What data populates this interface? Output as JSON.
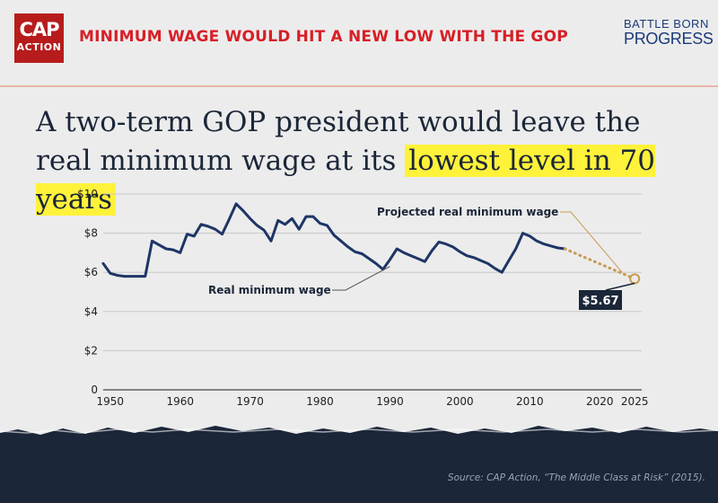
{
  "header": {
    "cap_logo_line1": "CAP",
    "cap_logo_line2": "ACTION",
    "banner": "MINIMUM WAGE WOULD HIT A NEW LOW WITH THE GOP",
    "bbp_line1": "BATTLE BORN",
    "bbp_line2": "PROGRESS",
    "brand_red": "#d71f26",
    "brand_blue": "#1a3a7a"
  },
  "headline": {
    "part1": "A two-term GOP president would leave the real minimum wage at its ",
    "highlight": "lowest level in 70 years",
    "highlight_color": "#fff23a"
  },
  "source": "Source: CAP Action, “The Middle Class at Risk” (2015).",
  "chart_data": {
    "type": "line",
    "title": "",
    "xlabel": "",
    "ylabel": "",
    "xlim": [
      1949,
      2026
    ],
    "ylim": [
      0,
      10
    ],
    "x_ticks": [
      1950,
      1960,
      1970,
      1980,
      1990,
      2000,
      2010,
      2020,
      2025
    ],
    "y_ticks": [
      0,
      2,
      4,
      6,
      8,
      10
    ],
    "y_tick_labels": [
      "0",
      "$2",
      "$4",
      "$6",
      "$8",
      "$10"
    ],
    "grid": true,
    "series": [
      {
        "name": "Real minimum wage",
        "color": "#1e3566",
        "style": "solid",
        "x": [
          1949,
          1950,
          1951,
          1952,
          1953,
          1954,
          1955,
          1956,
          1957,
          1958,
          1959,
          1960,
          1961,
          1962,
          1963,
          1964,
          1965,
          1966,
          1967,
          1968,
          1969,
          1970,
          1971,
          1972,
          1973,
          1974,
          1975,
          1976,
          1977,
          1978,
          1979,
          1980,
          1981,
          1982,
          1983,
          1984,
          1985,
          1986,
          1987,
          1988,
          1989,
          1990,
          1991,
          1992,
          1993,
          1994,
          1995,
          1996,
          1997,
          1998,
          1999,
          2000,
          2001,
          2002,
          2003,
          2004,
          2005,
          2006,
          2007,
          2008,
          2009,
          2010,
          2011,
          2012,
          2013,
          2014,
          2015
        ],
        "values": [
          6.45,
          5.95,
          5.85,
          5.8,
          5.8,
          5.8,
          5.8,
          7.6,
          7.4,
          7.2,
          7.15,
          7.0,
          7.95,
          7.85,
          8.45,
          8.35,
          8.2,
          7.95,
          8.7,
          9.5,
          9.15,
          8.75,
          8.4,
          8.15,
          7.6,
          8.65,
          8.45,
          8.75,
          8.2,
          8.85,
          8.85,
          8.5,
          8.4,
          7.9,
          7.6,
          7.3,
          7.05,
          6.95,
          6.7,
          6.45,
          6.15,
          6.65,
          7.2,
          7.0,
          6.85,
          6.7,
          6.55,
          7.1,
          7.55,
          7.45,
          7.3,
          7.05,
          6.85,
          6.75,
          6.6,
          6.45,
          6.2,
          6.0,
          6.6,
          7.2,
          8.0,
          7.85,
          7.6,
          7.45,
          7.35,
          7.25,
          7.2
        ]
      },
      {
        "name": "Projected real minimum wage",
        "color": "#c79b50",
        "style": "dotted",
        "x": [
          2015,
          2025
        ],
        "values": [
          7.2,
          5.67
        ]
      }
    ],
    "callout": {
      "x": 2025,
      "y": 5.67,
      "label": "$5.67"
    }
  }
}
